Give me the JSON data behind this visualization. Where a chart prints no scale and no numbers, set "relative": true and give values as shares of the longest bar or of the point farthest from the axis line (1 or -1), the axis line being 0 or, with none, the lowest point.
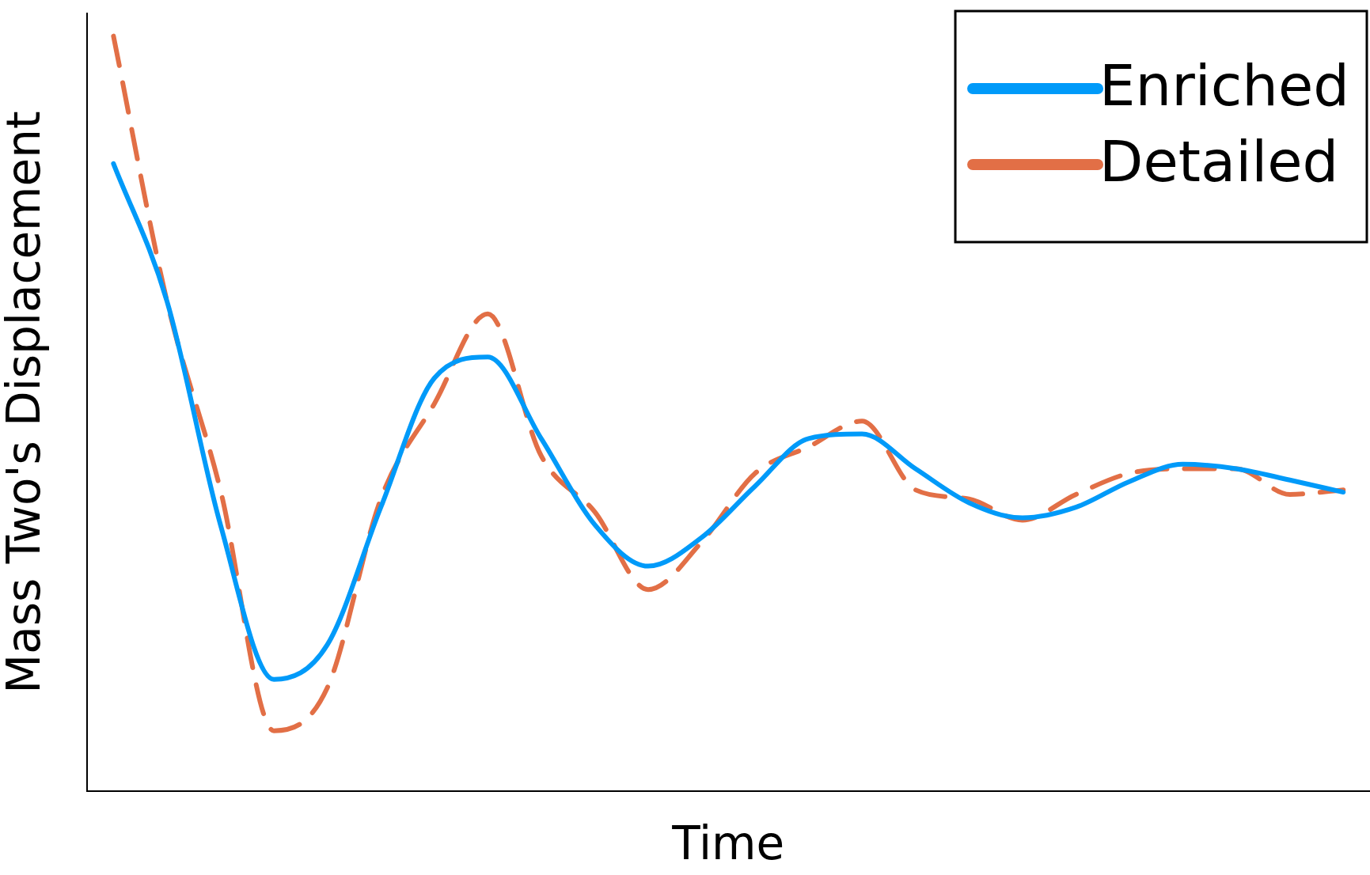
{
  "chart_data": {
    "type": "line",
    "xlabel": "Time",
    "ylabel": "Mass Two's Displacement",
    "relative": true,
    "legend": "top right",
    "grid": false,
    "marker": "none",
    "categories": [
      null,
      null,
      null,
      null,
      null,
      null,
      null,
      null,
      null,
      null,
      null,
      null,
      null,
      null,
      null,
      null,
      null,
      null,
      null,
      null,
      null,
      null,
      null,
      null
    ],
    "series": [
      {
        "name": "Enriched",
        "color": "#009af9",
        "line_style": "solid",
        "values": [
          0.831,
          0.649,
          0.353,
          0.148,
          0.194,
          0.376,
          0.547,
          0.575,
          0.467,
          0.353,
          0.298,
          0.336,
          0.404,
          0.467,
          0.473,
          0.427,
          0.382,
          0.362,
          0.376,
          0.41,
          0.433,
          0.427,
          0.412,
          0.396
        ]
      },
      {
        "name": "Detailed",
        "color": "#e26f46",
        "line_style": "dashed",
        "values": [
          1,
          0.649,
          0.399,
          0.08,
          0.137,
          0.387,
          0.513,
          0.632,
          0.444,
          0.37,
          0.267,
          0.33,
          0.421,
          0.456,
          0.49,
          0.399,
          0.387,
          0.359,
          0.393,
          0.421,
          0.427,
          0.427,
          0.393,
          0.399
        ]
      }
    ]
  }
}
